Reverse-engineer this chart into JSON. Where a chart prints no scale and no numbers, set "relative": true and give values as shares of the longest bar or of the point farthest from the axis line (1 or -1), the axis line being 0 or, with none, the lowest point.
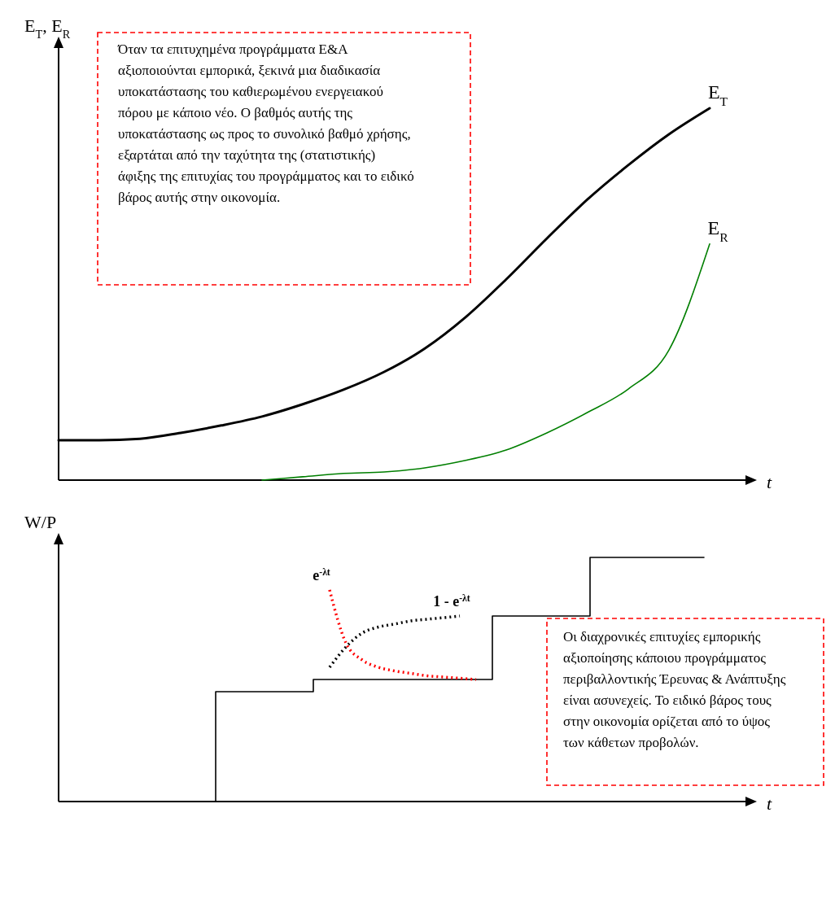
{
  "chart_data": [
    {
      "type": "line",
      "relative": true,
      "xlabel": "t",
      "ylabel": "E$_{T}$, E$_{R}$",
      "categories": [
        null,
        null,
        null,
        null,
        null,
        null,
        null,
        null,
        null,
        null,
        null,
        null,
        null,
        null,
        null,
        null,
        null
      ],
      "series": [
        {
          "name": "E$_{T}$",
          "color": "#000000",
          "values": [
            0.107,
            0.107,
            0.111,
            0.127,
            0.147,
            0.171,
            0.204,
            0.243,
            0.291,
            0.354,
            0.438,
            0.54,
            0.65,
            0.755,
            0.847,
            0.93,
            1
          ]
        },
        {
          "name": "E$_{R}$",
          "color": "#007f00",
          "values": [
            null,
            null,
            null,
            null,
            null,
            0,
            0.009,
            0.018,
            0.022,
            0.033,
            0.053,
            0.081,
            0.127,
            0.182,
            0.245,
            0.35,
            0.635
          ]
        }
      ],
      "annotations": [
        "Όταν τα επιτυχημένα προγράμματα Ε&Α αξιοποιούνται εμπορικά, ξεκινά μια διαδικασία υποκατάστασης του καθιερωμένου ενεργειακού πόρου με κάποιο νέο. Ο βαθμός αυτής της υποκατάστασης ως προς το συνολικό βαθμό χρήσης, εξαρτάται από την ταχύτητα της (στατιστικής) άφιξης της επιτυχίας του προγράμματος και το ειδικό βάρος αυτής στην οικονομία."
      ]
    },
    {
      "type": "step",
      "relative": true,
      "xlabel": "t",
      "ylabel": "W/P",
      "categories": [
        null,
        null,
        null,
        null,
        null,
        null,
        null,
        null,
        null,
        null,
        null,
        null,
        null,
        null,
        null,
        null,
        null,
        null,
        null,
        null,
        null,
        null,
        null,
        null,
        null,
        null,
        null,
        null,
        null,
        null,
        null,
        null,
        null,
        null,
        null,
        null,
        null,
        null,
        null,
        null,
        null
      ],
      "series": [
        {
          "color": "#000000",
          "values": [
            null,
            null,
            null,
            null,
            null,
            null,
            null,
            null,
            null,
            0,
            0.45,
            0.45,
            0.45,
            0.45,
            0.45,
            0.45,
            0.5,
            0.5,
            0.5,
            0.5,
            0.5,
            0.5,
            0.5,
            0.5,
            0.5,
            0.5,
            0.5,
            0.76,
            0.76,
            0.76,
            0.76,
            0.76,
            0.76,
            1,
            1,
            1,
            1,
            1,
            1,
            1,
            1
          ]
        },
        {
          "type": "line",
          "name": "e$^{-λt}$",
          "color": "#ff0000",
          "line_style": "dotted",
          "values": [
            null,
            null,
            null,
            null,
            null,
            null,
            null,
            null,
            null,
            null,
            null,
            null,
            null,
            null,
            null,
            null,
            null,
            0.867,
            0.65,
            0.58,
            0.55,
            0.535,
            0.525,
            0.515,
            0.51,
            0.505,
            0.5,
            null,
            null,
            null,
            null,
            null,
            null,
            null,
            null,
            null,
            null,
            null,
            null,
            null,
            null
          ]
        },
        {
          "type": "line",
          "name": "1 - e$^{-λt}$",
          "color": "#000000",
          "line_style": "dotted",
          "values": [
            null,
            null,
            null,
            null,
            null,
            null,
            null,
            null,
            null,
            null,
            null,
            null,
            null,
            null,
            null,
            null,
            null,
            0.55,
            0.633,
            0.69,
            0.715,
            0.727,
            0.74,
            0.747,
            0.753,
            0.76,
            null,
            null,
            null,
            null,
            null,
            null,
            null,
            null,
            null,
            null,
            null,
            null,
            null,
            null,
            null
          ]
        }
      ],
      "annotations": [
        "Οι διαχρονικές επιτυχίες εμπορικής αξιοποίησης κάποιου προγράμματος περιβαλλοντικής Έρευνας & Ανάπτυξης είναι ασυνεχείς. Το ειδικό βάρος τους στην οικονομία ορίζεται από το ύψος των κάθετων προβολών."
      ]
    }
  ]
}
